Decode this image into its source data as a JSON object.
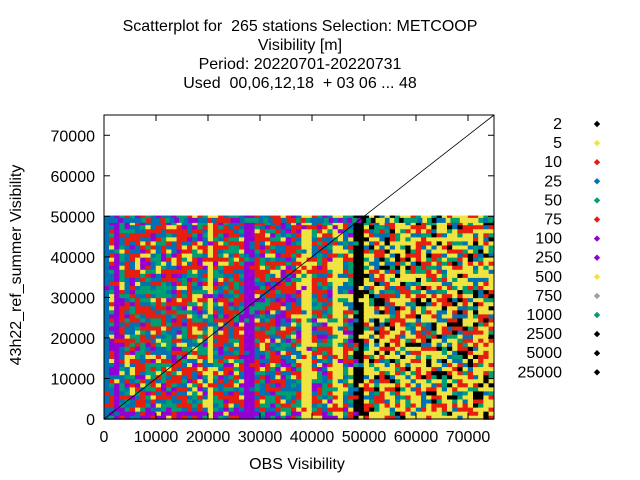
{
  "title_lines": [
    "Scatterplot for  265 stations Selection: METCOOP",
    "Visibility [m]",
    "Period: 20220701-20220731",
    "Used  00,06,12,18  + 03 06 ... 48"
  ],
  "chart_data": {
    "type": "scatter",
    "xlabel": "OBS Visibility",
    "ylabel": "43h22_ref_summer Visibility",
    "xlim": [
      0,
      75000
    ],
    "ylim": [
      0,
      75000
    ],
    "x_ticks": [
      "0",
      "10000",
      "20000",
      "30000",
      "40000",
      "50000",
      "60000",
      "70000"
    ],
    "y_ticks": [
      "0",
      "10000",
      "20000",
      "30000",
      "40000",
      "50000",
      "60000",
      "70000"
    ],
    "legend_position": "right",
    "grid": false,
    "diagonal_line": true,
    "series": [
      {
        "name": "2",
        "color": "#000000"
      },
      {
        "name": "5",
        "color": "#f0e442"
      },
      {
        "name": "10",
        "color": "#e51e10"
      },
      {
        "name": "25",
        "color": "#0072b2"
      },
      {
        "name": "50",
        "color": "#009e73"
      },
      {
        "name": "75",
        "color": "#e51e10"
      },
      {
        "name": "100",
        "color": "#9400d3"
      },
      {
        "name": "250",
        "color": "#9400d3"
      },
      {
        "name": "500",
        "color": "#f0e442"
      },
      {
        "name": "750",
        "color": "#a0a0a0"
      },
      {
        "name": "1000",
        "color": "#009e73"
      },
      {
        "name": "2500",
        "color": "#000000"
      },
      {
        "name": "5000",
        "color": "#000000"
      },
      {
        "name": "25000",
        "color": "#000000"
      }
    ]
  }
}
